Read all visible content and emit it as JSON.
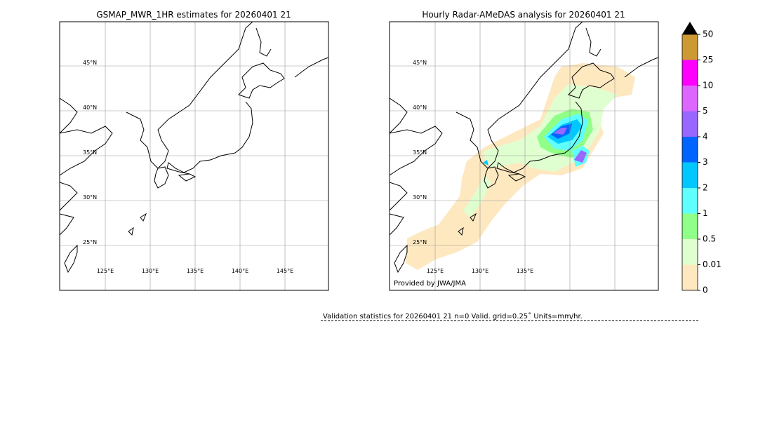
{
  "maps": [
    {
      "title": "GSMAP_MWR_1HR estimates for 20260401 21",
      "lat_labels": [
        "45°N",
        "40°N",
        "35°N",
        "30°N",
        "25°N"
      ],
      "lon_labels": [
        "125°E",
        "130°E",
        "135°E",
        "140°E",
        "145°E"
      ]
    },
    {
      "title": "Hourly Radar-AMeDAS analysis for 20260401 21",
      "lat_labels": [
        "45°N",
        "40°N",
        "35°N",
        "30°N",
        "25°N"
      ],
      "lon_labels": [
        "125°E",
        "130°E",
        "135°E"
      ],
      "credit": "Provided by JWA/JMA"
    }
  ],
  "colorbar": {
    "levels": [
      0,
      0.01,
      0.5,
      1,
      2,
      3,
      4,
      5,
      10,
      25,
      50
    ],
    "colors": [
      "#fee8c0",
      "#e0ffd0",
      "#90ff88",
      "#60ffff",
      "#00c8ff",
      "#0064ff",
      "#9966ff",
      "#dd66ff",
      "#ff00ff",
      "#cc9933"
    ]
  },
  "validation": "Validation statistics for 20260401 21  n=0 Valid. grid=0.25˚ Units=mm/hr."
}
